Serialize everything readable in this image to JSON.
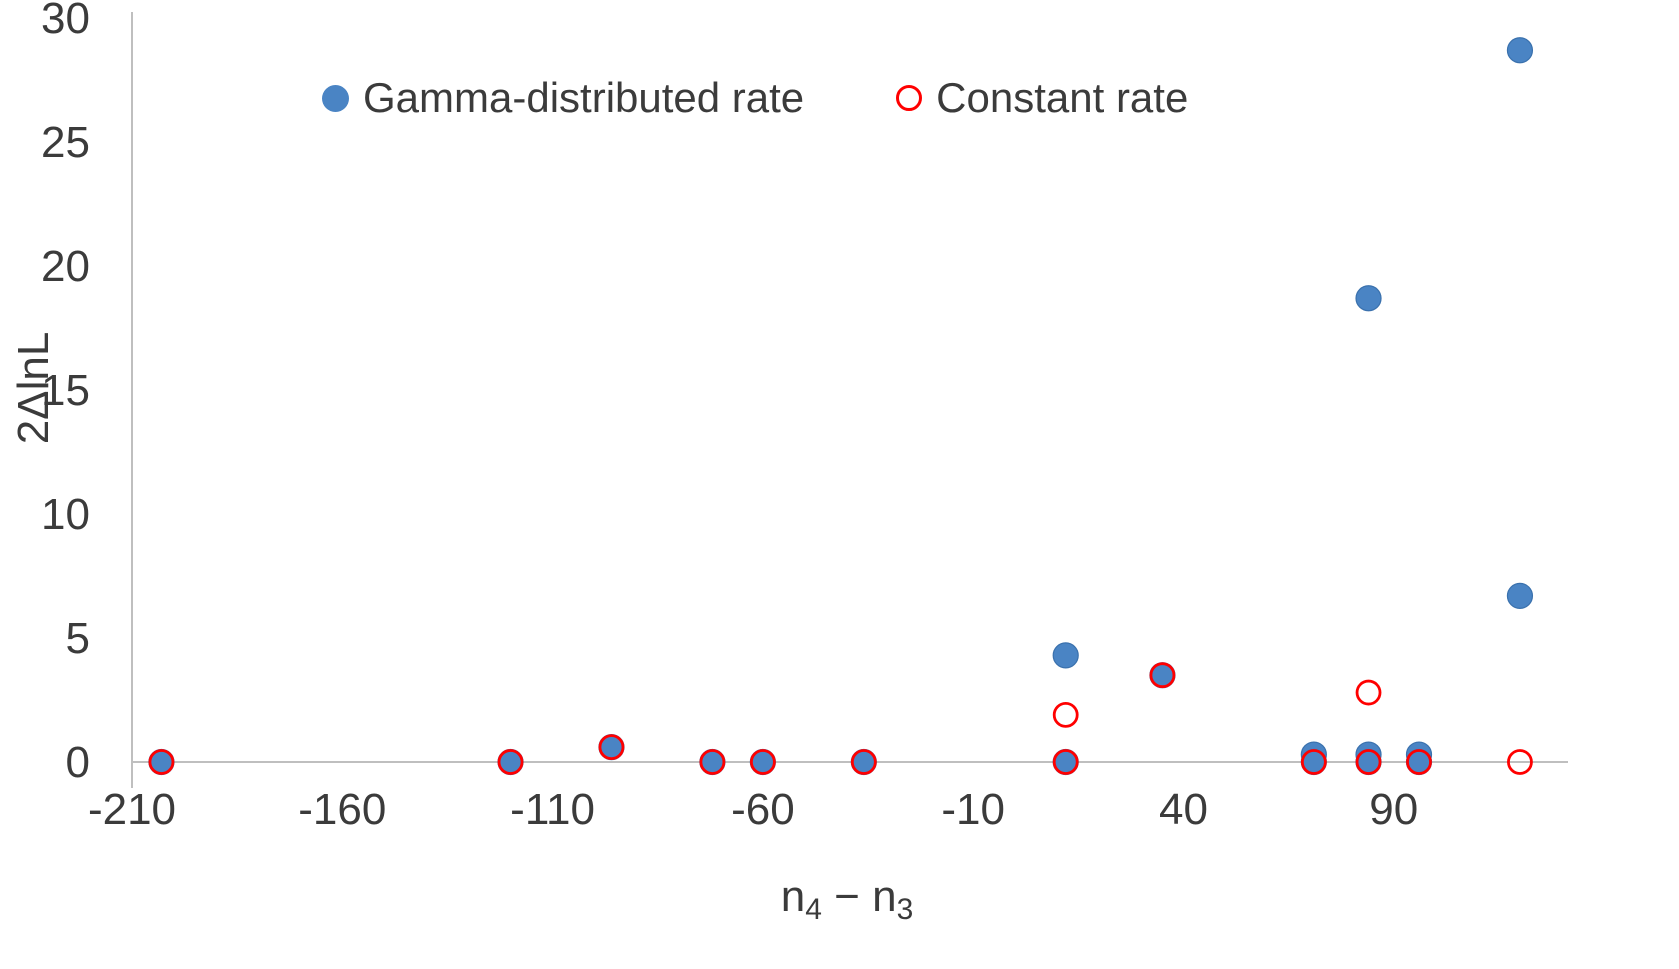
{
  "chart_data": {
    "type": "scatter",
    "title": "",
    "xlabel": "n4 − n3",
    "xlabel_rich": {
      "base1": "n",
      "sub1": "4",
      "op": " − ",
      "base2": "n",
      "sub2": "3"
    },
    "ylabel": "2ΔlnL",
    "xlim": [
      -210,
      130
    ],
    "ylim": [
      0,
      30
    ],
    "xticks": [
      "-210",
      "-160",
      "-110",
      "-60",
      "-10",
      "40",
      "90"
    ],
    "xtick_values": [
      -210,
      -160,
      -110,
      -60,
      -10,
      40,
      90
    ],
    "yticks": [
      "0",
      "5",
      "10",
      "15",
      "20",
      "25",
      "30"
    ],
    "ytick_values": [
      0,
      5,
      10,
      15,
      20,
      25,
      30
    ],
    "grid": false,
    "legend_position": "top-inside",
    "colors": {
      "axis_line": "#bfbfbf",
      "tick_text": "#3b3b3b",
      "gamma_blue": "#4a84c4",
      "gamma_blue_edge": "#3a71ad",
      "constant_red": "#ff0000"
    },
    "series": [
      {
        "name": "Gamma-distributed rate",
        "marker": "filled-circle",
        "color": "#4a84c4",
        "edge": "#3a71ad",
        "points": [
          [
            -203,
            0
          ],
          [
            -120,
            0
          ],
          [
            -96,
            0.6
          ],
          [
            -72,
            0
          ],
          [
            -60,
            0
          ],
          [
            -36,
            0
          ],
          [
            12,
            4.3
          ],
          [
            12,
            0
          ],
          [
            35,
            3.5
          ],
          [
            71,
            0.3
          ],
          [
            71,
            0
          ],
          [
            84,
            18.7
          ],
          [
            84,
            0.3
          ],
          [
            84,
            0
          ],
          [
            96,
            0.3
          ],
          [
            96,
            0
          ],
          [
            120,
            28.7
          ],
          [
            120,
            6.7
          ]
        ]
      },
      {
        "name": "Constant rate",
        "marker": "open-circle",
        "color": "#ff0000",
        "points": [
          [
            -203,
            0
          ],
          [
            -120,
            0
          ],
          [
            -96,
            0.6
          ],
          [
            -72,
            0
          ],
          [
            -60,
            0
          ],
          [
            -36,
            0
          ],
          [
            12,
            1.9
          ],
          [
            12,
            0
          ],
          [
            35,
            3.5
          ],
          [
            71,
            0
          ],
          [
            84,
            2.8
          ],
          [
            84,
            0
          ],
          [
            96,
            0
          ],
          [
            120,
            0
          ]
        ]
      }
    ]
  }
}
